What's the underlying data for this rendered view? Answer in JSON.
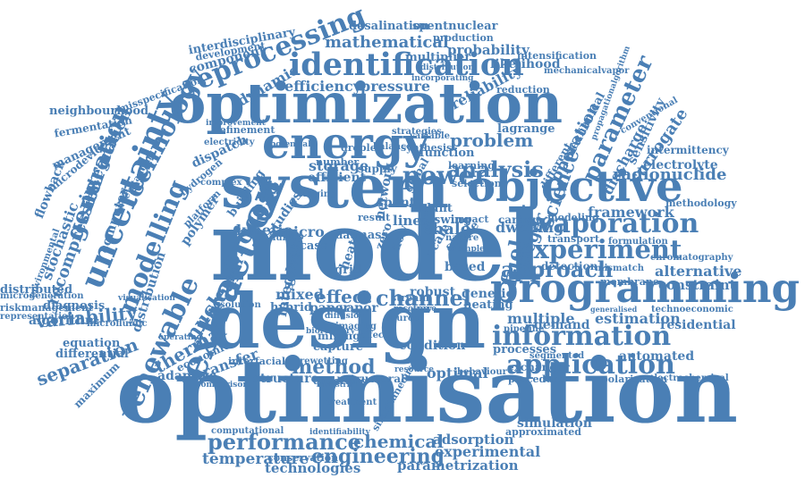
{
  "colors": {
    "word": "#4a7fb5",
    "background": "#ffffff"
  },
  "words": [
    {
      "text": "optimisation",
      "id": "optimisation"
    },
    {
      "text": "design",
      "id": "design"
    },
    {
      "text": "model",
      "id": "model"
    },
    {
      "text": "system",
      "id": "system"
    },
    {
      "text": "optimization",
      "id": "optimization"
    },
    {
      "text": "programming",
      "id": "programming"
    },
    {
      "text": "energy",
      "id": "energy"
    },
    {
      "text": "objective",
      "id": "objective"
    },
    {
      "text": "identification",
      "id": "identification"
    },
    {
      "text": "information",
      "id": "information"
    },
    {
      "text": "extraction",
      "id": "extraction"
    },
    {
      "text": "uncertainty",
      "id": "uncertainty"
    },
    {
      "text": "reprocessing",
      "id": "reprocessing"
    },
    {
      "text": "evaporation",
      "id": "evaporation"
    },
    {
      "text": "experiment",
      "id": "experiment"
    },
    {
      "text": "application",
      "id": "application"
    },
    {
      "text": "performance",
      "id": "performance"
    },
    {
      "text": "engineering",
      "id": "engineering"
    },
    {
      "text": "renewable",
      "id": "renewable"
    },
    {
      "text": "modelling",
      "id": "modelling"
    },
    {
      "text": "technology",
      "id": "technology"
    },
    {
      "text": "generation",
      "id": "generation"
    },
    {
      "text": "analysis",
      "id": "analysis"
    },
    {
      "text": "approach",
      "id": "approach"
    },
    {
      "text": "parameter",
      "id": "parameter"
    },
    {
      "text": "power",
      "id": "power"
    },
    {
      "text": "process",
      "id": "process"
    },
    {
      "text": "chemical",
      "id": "chemical"
    },
    {
      "text": "method",
      "id": "method"
    },
    {
      "text": "separation",
      "id": "separation"
    },
    {
      "text": "variability",
      "id": "variability"
    },
    {
      "text": "thermal",
      "id": "thermal"
    },
    {
      "text": "nuclear",
      "id": "nuclear"
    },
    {
      "text": "decision",
      "id": "decision"
    },
    {
      "text": "recompression",
      "id": "recompression"
    },
    {
      "text": "integration",
      "id": "integration"
    },
    {
      "text": "science",
      "id": "science"
    },
    {
      "text": "operation",
      "id": "operation"
    },
    {
      "text": "integer",
      "id": "integer"
    },
    {
      "text": "fuel",
      "id": "fuel"
    },
    {
      "text": "problem",
      "id": "problem"
    },
    {
      "text": "mathematical",
      "id": "mathematical"
    },
    {
      "text": "reliability",
      "id": "reliability"
    },
    {
      "text": "efficiency",
      "id": "efficiency"
    },
    {
      "text": "pressure",
      "id": "pressure"
    },
    {
      "text": "storage",
      "id": "storage"
    },
    {
      "text": "radionuclide",
      "id": "radionuclide"
    },
    {
      "text": "framework",
      "id": "framework"
    },
    {
      "text": "alternative",
      "id": "alternative"
    },
    {
      "text": "constraint",
      "id": "constraint"
    },
    {
      "text": "estimation",
      "id": "estimation"
    },
    {
      "text": "demand",
      "id": "demand"
    },
    {
      "text": "residential",
      "id": "residential"
    },
    {
      "text": "multiple",
      "id": "multiple"
    },
    {
      "text": "channel",
      "id": "channel"
    },
    {
      "text": "effect",
      "id": "effect"
    },
    {
      "text": "temperature",
      "id": "temperature"
    },
    {
      "text": "technologies",
      "id": "technologies"
    },
    {
      "text": "experimental",
      "id": "experimental"
    },
    {
      "text": "adsorption",
      "id": "adsorption"
    },
    {
      "text": "adaptive",
      "id": "adaptive"
    },
    {
      "text": "transfer",
      "id": "transfer"
    },
    {
      "text": "structure",
      "id": "structure"
    },
    {
      "text": "processes",
      "id": "processes"
    },
    {
      "text": "automated",
      "id": "automated"
    },
    {
      "text": "optimal",
      "id": "optimal"
    },
    {
      "text": "condition",
      "id": "condition"
    },
    {
      "text": "surrogate",
      "id": "surrogate"
    },
    {
      "text": "discharge",
      "id": "discharge"
    },
    {
      "text": "sensitivity",
      "id": "sensitivity"
    },
    {
      "text": "electrolyte",
      "id": "electrolyte"
    },
    {
      "text": "intermittency",
      "id": "intermittency"
    },
    {
      "text": "dwelling",
      "id": "dwelling"
    },
    {
      "text": "shale",
      "id": "shale"
    },
    {
      "text": "based",
      "id": "based"
    },
    {
      "text": "genetic",
      "id": "genetic"
    },
    {
      "text": "heating",
      "id": "heating"
    },
    {
      "text": "robust",
      "id": "robust"
    },
    {
      "text": "mixed",
      "id": "mixed"
    },
    {
      "text": "integrated",
      "id": "integrated"
    },
    {
      "text": "hybrid",
      "id": "hybrid"
    },
    {
      "text": "paper",
      "id": "paper"
    },
    {
      "text": "vapor",
      "id": "vapor"
    },
    {
      "text": "solvent",
      "id": "solvent"
    },
    {
      "text": "kinetic",
      "id": "kinetic"
    },
    {
      "text": "micro",
      "id": "micro"
    },
    {
      "text": "linear",
      "id": "linear"
    },
    {
      "text": "stochastic",
      "id": "stochastic"
    },
    {
      "text": "flowback",
      "id": "flowback"
    },
    {
      "text": "computer",
      "id": "computer"
    },
    {
      "text": "distribution",
      "id": "distribution"
    },
    {
      "text": "polymer",
      "id": "polymer"
    },
    {
      "text": "economic",
      "id": "economic"
    },
    {
      "text": "algorithm",
      "id": "algorithm"
    },
    {
      "text": "equation",
      "id": "equation"
    },
    {
      "text": "differential",
      "id": "differential"
    },
    {
      "text": "diagnosis",
      "id": "diagnosis"
    },
    {
      "text": "distributed",
      "id": "distributed"
    },
    {
      "text": "microgeneration",
      "id": "microgeneration"
    },
    {
      "text": "riskmanagement",
      "id": "riskmanagement"
    },
    {
      "text": "representation",
      "id": "representation"
    },
    {
      "text": "neighbourhood",
      "id": "neighbourhood"
    },
    {
      "text": "fermentation",
      "id": "fermentation"
    },
    {
      "text": "management",
      "id": "management"
    },
    {
      "text": "microdevices",
      "id": "microdevices"
    },
    {
      "text": "dynamic",
      "id": "dynamic"
    },
    {
      "text": "component",
      "id": "component"
    },
    {
      "text": "development",
      "id": "development"
    },
    {
      "text": "interdisciplinary",
      "id": "interdisciplinary"
    },
    {
      "text": "misspecification",
      "id": "misspecification"
    },
    {
      "text": "desalination",
      "id": "desalination"
    },
    {
      "text": "spentnuclear",
      "id": "spentnuclear"
    },
    {
      "text": "production",
      "id": "production"
    },
    {
      "text": "probability",
      "id": "probability"
    },
    {
      "text": "multiplier",
      "id": "multiplier"
    },
    {
      "text": "intensification",
      "id": "intensification"
    },
    {
      "text": "likelihood",
      "id": "likelihood"
    },
    {
      "text": "mechanicalvapor",
      "id": "mechanicalvapor"
    },
    {
      "text": "propagationalgorithm",
      "id": "propagationalgorithm"
    },
    {
      "text": "lagrange",
      "id": "lagrange"
    },
    {
      "text": "reduction",
      "id": "reduction"
    },
    {
      "text": "mechanical",
      "id": "mechanical"
    },
    {
      "text": "conventional",
      "id": "conventional"
    },
    {
      "text": "function",
      "id": "function"
    },
    {
      "text": "dispatch",
      "id": "dispatch"
    },
    {
      "text": "refinement",
      "id": "refinement"
    },
    {
      "text": "strategies",
      "id": "strategies"
    },
    {
      "text": "synthesis",
      "id": "synthesis"
    },
    {
      "text": "learning",
      "id": "learning"
    },
    {
      "text": "selection",
      "id": "selection"
    },
    {
      "text": "supply",
      "id": "supply"
    },
    {
      "text": "efficient",
      "id": "efficient"
    },
    {
      "text": "number",
      "id": "number"
    },
    {
      "text": "spent",
      "id": "spent"
    },
    {
      "text": "plant",
      "id": "plant"
    },
    {
      "text": "swing",
      "id": "swing"
    },
    {
      "text": "impact",
      "id": "impact"
    },
    {
      "text": "carbon",
      "id": "carbon"
    },
    {
      "text": "modeling",
      "id": "modeling"
    },
    {
      "text": "methodology",
      "id": "methodology"
    },
    {
      "text": "transport",
      "id": "transport"
    },
    {
      "text": "formulation",
      "id": "formulation"
    },
    {
      "text": "chromatography",
      "id": "chromatography"
    },
    {
      "text": "detection",
      "id": "detection"
    },
    {
      "text": "mismatch",
      "id": "mismatch"
    },
    {
      "text": "membrane",
      "id": "membrane"
    },
    {
      "text": "technoeconomic",
      "id": "technoeconomic"
    },
    {
      "text": "pipeline",
      "id": "pipeline"
    },
    {
      "text": "segmented",
      "id": "segmented"
    },
    {
      "text": "exchanger",
      "id": "exchanger"
    },
    {
      "text": "behaviour",
      "id": "behaviour"
    },
    {
      "text": "polarisation",
      "id": "polarisation"
    },
    {
      "text": "electrochemical",
      "id": "electrochemical"
    },
    {
      "text": "procedure",
      "id": "procedure"
    },
    {
      "text": "simulation",
      "id": "simulation"
    },
    {
      "text": "approximated",
      "id": "approximated"
    },
    {
      "text": "parametrization",
      "id": "parametrization"
    },
    {
      "text": "conservation",
      "id": "conservation"
    },
    {
      "text": "mining",
      "id": "mining"
    },
    {
      "text": "capture",
      "id": "capture"
    },
    {
      "text": "quadratic",
      "id": "quadratic"
    },
    {
      "text": "structural",
      "id": "structural"
    },
    {
      "text": "simultaneous",
      "id": "simultaneous"
    },
    {
      "text": "computational",
      "id": "computational"
    },
    {
      "text": "interfacial",
      "id": "interfacial"
    },
    {
      "text": "comparison",
      "id": "comparison"
    },
    {
      "text": "operating",
      "id": "operating"
    },
    {
      "text": "maximum",
      "id": "maximum"
    },
    {
      "text": "microfluidic",
      "id": "microfluidic"
    },
    {
      "text": "resource",
      "id": "resource"
    },
    {
      "text": "platform",
      "id": "platform"
    },
    {
      "text": "hydrogen",
      "id": "hydrogen"
    },
    {
      "text": "building",
      "id": "building"
    },
    {
      "text": "studies",
      "id": "studies"
    },
    {
      "text": "failure",
      "id": "failure"
    },
    {
      "text": "case",
      "id": "case"
    },
    {
      "text": "data",
      "id": "data"
    },
    {
      "text": "mass",
      "id": "mass"
    },
    {
      "text": "heat",
      "id": "heat"
    },
    {
      "text": "zero",
      "id": "zero"
    },
    {
      "text": "flow",
      "id": "flow"
    },
    {
      "text": "grid",
      "id": "grid"
    },
    {
      "text": "cell",
      "id": "cell"
    },
    {
      "text": "scale",
      "id": "scale"
    },
    {
      "text": "single",
      "id": "single"
    },
    {
      "text": "stream",
      "id": "stream"
    },
    {
      "text": "solution",
      "id": "solution"
    },
    {
      "text": "result",
      "id": "result"
    },
    {
      "text": "electricity",
      "id": "electricity"
    },
    {
      "text": "balance",
      "id": "balance"
    },
    {
      "text": "droplet",
      "id": "droplet"
    },
    {
      "text": "kriging",
      "id": "kriging"
    },
    {
      "text": "global",
      "id": "global"
    },
    {
      "text": "network",
      "id": "network"
    },
    {
      "text": "variable",
      "id": "variable"
    },
    {
      "text": "different",
      "id": "different"
    },
    {
      "text": "complex",
      "id": "complex"
    },
    {
      "text": "understanding",
      "id": "understanding"
    },
    {
      "text": "environmental",
      "id": "environmental"
    },
    {
      "text": "improvement",
      "id": "improvement"
    },
    {
      "text": "visualisation",
      "id": "visualisation"
    },
    {
      "text": "nature",
      "id": "nature"
    },
    {
      "text": "example",
      "id": "example"
    },
    {
      "text": "identifiability",
      "id": "identifiability"
    },
    {
      "text": "industrial",
      "id": "industrial"
    },
    {
      "text": "biorefinery",
      "id": "biorefinery"
    },
    {
      "text": "recovery",
      "id": "recovery"
    },
    {
      "text": "trace",
      "id": "trace"
    },
    {
      "text": "imaging",
      "id": "imaging"
    },
    {
      "text": "effects",
      "id": "effects"
    },
    {
      "text": "source",
      "id": "source"
    },
    {
      "text": "diffusion",
      "id": "diffusion"
    },
    {
      "text": "potential",
      "id": "potential"
    },
    {
      "text": "incorporating",
      "id": "incorporating"
    },
    {
      "text": "distribution",
      "id": "distribution2"
    },
    {
      "text": "generalised",
      "id": "generalised"
    },
    {
      "text": "rewetting",
      "id": "rewetting"
    },
    {
      "text": "treatment",
      "id": "treatment"
    }
  ]
}
